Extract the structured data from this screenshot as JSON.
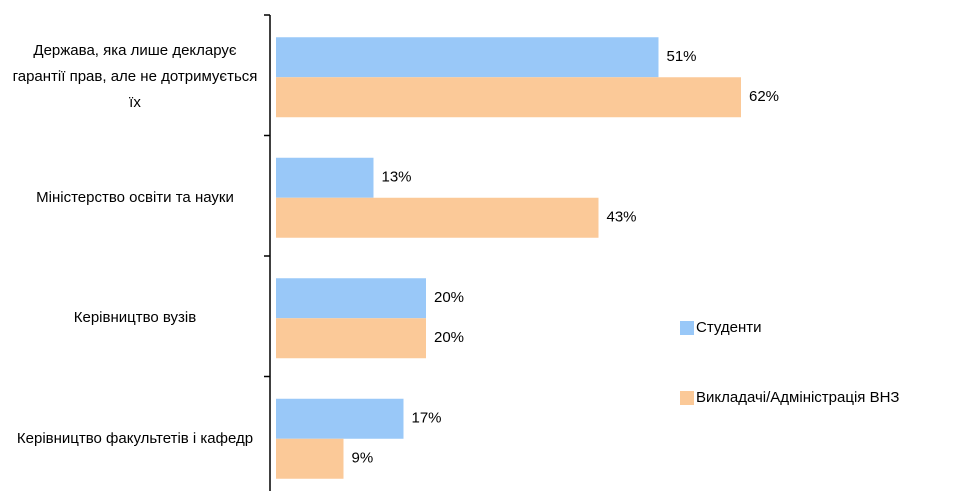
{
  "chart_data": {
    "type": "bar",
    "orientation": "horizontal",
    "categories": [
      "Держава, яка лише декларує гарантії прав, але не дотримується їх",
      "Міністерство освіти та науки",
      "Керівництво вузів",
      "Керівництво факультетів і кафедр"
    ],
    "series": [
      {
        "name": "Студенти",
        "color": "#99c8f8",
        "values": [
          51,
          13,
          20,
          17
        ],
        "value_labels": [
          "51%",
          "13%",
          "20%",
          "17%"
        ]
      },
      {
        "name": "Викладачі/Адміністрація ВНЗ",
        "color": "#fbc998",
        "values": [
          62,
          43,
          20,
          9
        ],
        "value_labels": [
          "62%",
          "43%",
          "20%",
          "9%"
        ]
      }
    ],
    "legend": "right"
  }
}
